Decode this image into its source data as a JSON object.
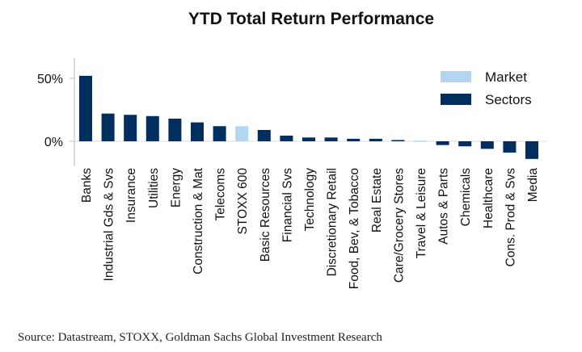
{
  "chart_data": {
    "type": "bar",
    "title": "YTD Total Return Performance",
    "categories": [
      "Banks",
      "Industrial Gds & Svs",
      "Insurance",
      "Utilities",
      "Energy",
      "Construction & Mat",
      "Telecoms",
      "STOXX 600",
      "Basic Resources",
      "Financial Svs",
      "Technology",
      "Discretionary Retail",
      "Food, Bev, & Tobacco",
      "Real Estate",
      "Care/Grocery Stores",
      "Travel & Leisure",
      "Autos & Parts",
      "Chemicals",
      "Healthcare",
      "Cons. Prod & Svs",
      "Media"
    ],
    "values": [
      52,
      22,
      21,
      20,
      18,
      15,
      12,
      12,
      9,
      4.5,
      3,
      3,
      2,
      2,
      1,
      0.5,
      -3,
      -4,
      -6,
      -9,
      -14
    ],
    "groups": [
      "Sectors",
      "Sectors",
      "Sectors",
      "Sectors",
      "Sectors",
      "Sectors",
      "Sectors",
      "Market",
      "Sectors",
      "Sectors",
      "Sectors",
      "Sectors",
      "Sectors",
      "Sectors",
      "Sectors",
      "Market",
      "Sectors",
      "Sectors",
      "Sectors",
      "Sectors",
      "Sectors"
    ],
    "yticks": [
      {
        "value": 0,
        "label": "0%"
      },
      {
        "value": 50,
        "label": "50%"
      }
    ],
    "ylim": [
      -15,
      68
    ],
    "legend": [
      {
        "name": "Market",
        "color": "#b3d6ef"
      },
      {
        "name": "Sectors",
        "color": "#002f5f"
      }
    ],
    "legend_position": "top-right",
    "grid": false
  },
  "source": "Source: Datastream, STOXX, Goldman Sachs Global Investment Research"
}
